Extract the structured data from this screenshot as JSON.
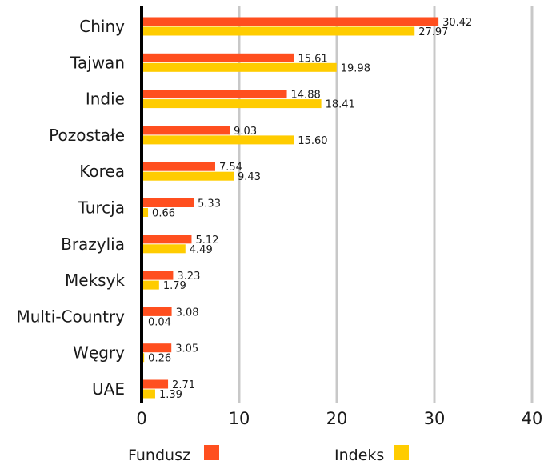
{
  "chart_data": {
    "type": "bar",
    "orientation": "horizontal",
    "categories": [
      "Chiny",
      "Tajwan",
      "Indie",
      "Pozostałe",
      "Korea",
      "Turcja",
      "Brazylia",
      "Meksyk",
      "Multi-Country",
      "Węgry",
      "UAE"
    ],
    "series": [
      {
        "name": "Fundusz",
        "color": "#ff4f1f",
        "values": [
          30.42,
          15.61,
          14.88,
          9.03,
          7.54,
          5.33,
          5.12,
          3.23,
          3.08,
          3.05,
          2.71
        ],
        "labels": [
          "30.42",
          "15.61",
          "14.88",
          "9.03",
          "7.54",
          "5.33",
          "5.12",
          "3.23",
          "3.08",
          "3.05",
          "2.71"
        ]
      },
      {
        "name": "Indeks",
        "color": "#ffcc00",
        "values": [
          27.97,
          19.98,
          18.41,
          15.6,
          9.43,
          0.66,
          4.49,
          1.79,
          0.04,
          0.26,
          1.39
        ],
        "labels": [
          "27.97",
          "19.98",
          "18.41",
          "15.60",
          "9.43",
          "0.66",
          "4.49",
          "1.79",
          "0.04",
          "0.26",
          "1.39"
        ]
      }
    ],
    "xlim": [
      0,
      40
    ],
    "xticks": [
      0,
      10,
      20,
      30,
      40
    ],
    "xtick_labels": [
      "0",
      "10",
      "20",
      "30",
      "40"
    ],
    "grid": true,
    "legend_position": "bottom",
    "title": "",
    "xlabel": "",
    "ylabel": ""
  }
}
